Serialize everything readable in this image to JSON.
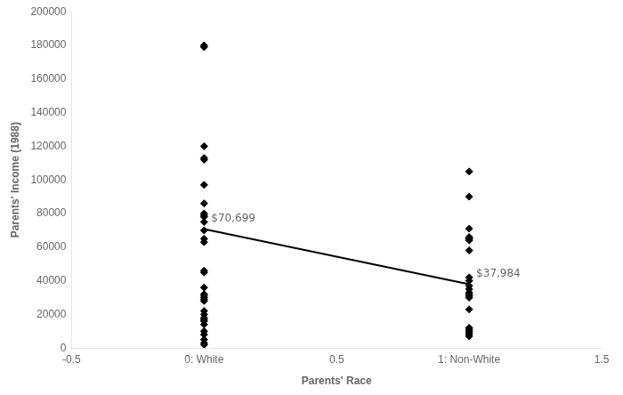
{
  "chart_data": {
    "type": "scatter",
    "xlabel": "Parents' Race",
    "ylabel": "Parents' Income (1988)",
    "xlim": [
      -0.5,
      1.5
    ],
    "ylim": [
      0,
      200000
    ],
    "xticks": [
      -0.5,
      {
        "value": 0,
        "label": "0: White"
      },
      0.5,
      {
        "value": 1,
        "label": "1: Non-White"
      },
      1.5
    ],
    "yticks": [
      0,
      20000,
      40000,
      60000,
      80000,
      100000,
      120000,
      140000,
      160000,
      180000,
      200000
    ],
    "grid": false,
    "series": [
      {
        "type": "scatter",
        "marker": "diamond",
        "color": "#000000",
        "x": [
          0,
          0,
          0,
          0,
          0,
          0,
          0,
          0,
          0,
          0,
          0,
          0,
          0,
          0,
          0,
          0,
          0,
          0,
          0,
          0,
          0,
          0,
          0,
          0,
          0,
          0,
          0,
          0,
          0,
          0,
          0,
          0,
          0
        ],
        "values": [
          180000,
          179000,
          120000,
          113000,
          112000,
          97000,
          86000,
          80000,
          79000,
          78000,
          75000,
          70000,
          65000,
          63000,
          46000,
          45000,
          36000,
          32000,
          31000,
          30000,
          29000,
          28000,
          22000,
          20000,
          18000,
          17000,
          16000,
          14000,
          10000,
          8000,
          5000,
          3000,
          2000
        ]
      },
      {
        "type": "scatter",
        "marker": "diamond",
        "color": "#000000",
        "x": [
          1,
          1,
          1,
          1,
          1,
          1,
          1,
          1,
          1,
          1,
          1,
          1,
          1,
          1,
          1,
          1,
          1,
          1,
          1,
          1,
          1,
          1,
          1
        ],
        "values": [
          105000,
          90000,
          71000,
          66000,
          65000,
          65000,
          64000,
          58000,
          42000,
          40000,
          37000,
          35000,
          33000,
          32000,
          31000,
          30000,
          23000,
          12000,
          11000,
          10000,
          9000,
          8000,
          7000
        ]
      },
      {
        "type": "line",
        "color": "#000000",
        "x": [
          0,
          1
        ],
        "values": [
          70699,
          37984
        ]
      }
    ],
    "annotations": [
      {
        "text": "$70,699",
        "x": 0,
        "y": 70699
      },
      {
        "text": "$37,984",
        "x": 1,
        "y": 37984
      }
    ]
  }
}
